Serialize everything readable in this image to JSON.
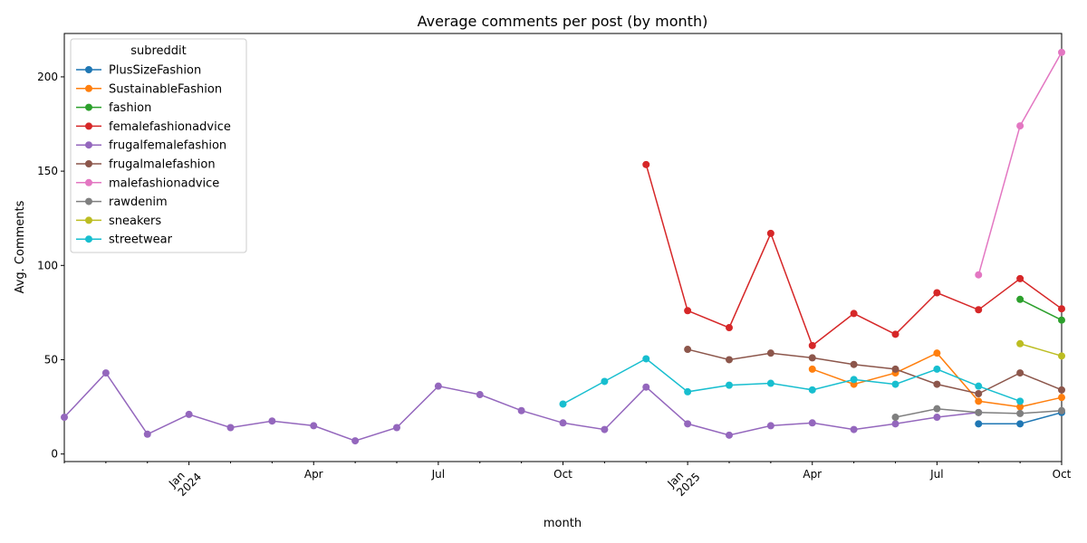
{
  "chart_data": {
    "type": "line",
    "title": "Average comments per post (by month)",
    "xlabel": "month",
    "ylabel": "Avg. Comments",
    "ylim": [
      -4,
      223
    ],
    "x_range": [
      "2023-10",
      "2025-10"
    ],
    "grid": false,
    "legend_title": "subreddit",
    "legend_position": "upper-left",
    "y_ticks": [
      0,
      50,
      100,
      150,
      200
    ],
    "x_ticks": [
      {
        "month": "2024-01",
        "label": "Jan",
        "sublabel": "2024"
      },
      {
        "month": "2024-04",
        "label": "Apr",
        "sublabel": ""
      },
      {
        "month": "2024-07",
        "label": "Jul",
        "sublabel": ""
      },
      {
        "month": "2024-10",
        "label": "Oct",
        "sublabel": ""
      },
      {
        "month": "2025-01",
        "label": "Jan",
        "sublabel": "2025"
      },
      {
        "month": "2025-04",
        "label": "Apr",
        "sublabel": ""
      },
      {
        "month": "2025-07",
        "label": "Jul",
        "sublabel": ""
      },
      {
        "month": "2025-10",
        "label": "Oct",
        "sublabel": ""
      }
    ],
    "series": [
      {
        "name": "PlusSizeFashion",
        "color": "#1f77b4",
        "points": [
          [
            "2025-08",
            16
          ],
          [
            "2025-09",
            16
          ],
          [
            "2025-10",
            22
          ]
        ]
      },
      {
        "name": "SustainableFashion",
        "color": "#ff7f0e",
        "points": [
          [
            "2025-04",
            45
          ],
          [
            "2025-05",
            37
          ],
          [
            "2025-06",
            43
          ],
          [
            "2025-07",
            53.5
          ],
          [
            "2025-08",
            28
          ],
          [
            "2025-09",
            25
          ],
          [
            "2025-10",
            30
          ]
        ]
      },
      {
        "name": "fashion",
        "color": "#2ca02c",
        "points": [
          [
            "2025-09",
            82
          ],
          [
            "2025-10",
            71
          ]
        ]
      },
      {
        "name": "femalefashionadvice",
        "color": "#d62728",
        "points": [
          [
            "2024-12",
            153.5
          ],
          [
            "2025-01",
            76
          ],
          [
            "2025-02",
            67
          ],
          [
            "2025-03",
            117
          ],
          [
            "2025-04",
            57.5
          ],
          [
            "2025-05",
            74.5
          ],
          [
            "2025-06",
            63.5
          ],
          [
            "2025-07",
            85.5
          ],
          [
            "2025-08",
            76.5
          ],
          [
            "2025-09",
            93
          ],
          [
            "2025-10",
            77
          ]
        ]
      },
      {
        "name": "frugalfemalefashion",
        "color": "#9467bd",
        "points": [
          [
            "2023-10",
            19.5
          ],
          [
            "2023-11",
            43
          ],
          [
            "2023-12",
            10.5
          ],
          [
            "2024-01",
            21
          ],
          [
            "2024-02",
            14
          ],
          [
            "2024-03",
            17.5
          ],
          [
            "2024-04",
            15
          ],
          [
            "2024-05",
            7
          ],
          [
            "2024-06",
            14
          ],
          [
            "2024-07",
            36
          ],
          [
            "2024-08",
            31.5
          ],
          [
            "2024-09",
            23
          ],
          [
            "2024-10",
            16.5
          ],
          [
            "2024-11",
            13
          ],
          [
            "2024-12",
            35.5
          ],
          [
            "2025-01",
            16
          ],
          [
            "2025-02",
            10
          ],
          [
            "2025-03",
            15
          ],
          [
            "2025-04",
            16.5
          ],
          [
            "2025-05",
            13
          ],
          [
            "2025-06",
            16
          ],
          [
            "2025-07",
            19.5
          ],
          [
            "2025-08",
            22
          ]
        ]
      },
      {
        "name": "frugalmalefashion",
        "color": "#8c564b",
        "points": [
          [
            "2025-01",
            55.5
          ],
          [
            "2025-02",
            50
          ],
          [
            "2025-03",
            53.5
          ],
          [
            "2025-04",
            51
          ],
          [
            "2025-05",
            47.5
          ],
          [
            "2025-06",
            45
          ],
          [
            "2025-07",
            37
          ],
          [
            "2025-08",
            32
          ],
          [
            "2025-09",
            43
          ],
          [
            "2025-10",
            34
          ]
        ]
      },
      {
        "name": "malefashionadvice",
        "color": "#e377c2",
        "points": [
          [
            "2025-08",
            95
          ],
          [
            "2025-09",
            174
          ],
          [
            "2025-10",
            213
          ]
        ]
      },
      {
        "name": "rawdenim",
        "color": "#7f7f7f",
        "points": [
          [
            "2025-06",
            19.5
          ],
          [
            "2025-07",
            24
          ],
          [
            "2025-08",
            22
          ],
          [
            "2025-09",
            21.5
          ],
          [
            "2025-10",
            23
          ]
        ]
      },
      {
        "name": "sneakers",
        "color": "#bcbd22",
        "points": [
          [
            "2025-09",
            58.5
          ],
          [
            "2025-10",
            52
          ]
        ]
      },
      {
        "name": "streetwear",
        "color": "#17becf",
        "points": [
          [
            "2024-10",
            26.5
          ],
          [
            "2024-11",
            38.5
          ],
          [
            "2024-12",
            50.5
          ],
          [
            "2025-01",
            33
          ],
          [
            "2025-02",
            36.5
          ],
          [
            "2025-03",
            37.5
          ],
          [
            "2025-04",
            34
          ],
          [
            "2025-05",
            39.5
          ],
          [
            "2025-06",
            37
          ],
          [
            "2025-07",
            45
          ],
          [
            "2025-08",
            36
          ],
          [
            "2025-09",
            28
          ]
        ]
      }
    ]
  }
}
